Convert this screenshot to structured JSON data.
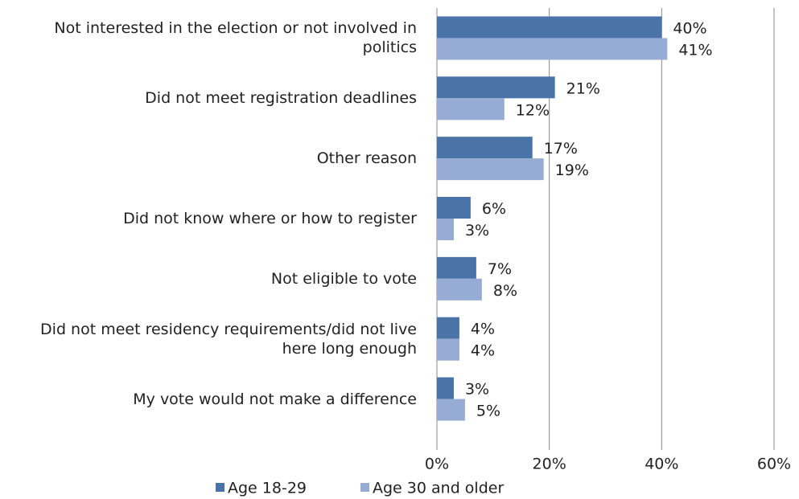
{
  "chart_data": {
    "type": "bar",
    "orientation": "horizontal",
    "categories": [
      "Not interested in the election or not involved in politics",
      "Did not meet registration deadlines",
      "Other reason",
      "Did not know where or how to register",
      "Not eligible to vote",
      "Did not meet residency requirements/did not live here long enough",
      "My vote would not make a difference"
    ],
    "series": [
      {
        "name": "Age 18-29",
        "color": "#4a74a8",
        "values": [
          40,
          21,
          17,
          6,
          7,
          4,
          3
        ],
        "value_labels": [
          "40%",
          "21%",
          "17%",
          "6%",
          "7%",
          "4%",
          "3%"
        ]
      },
      {
        "name": "Age 30 and older",
        "color": "#97acd4",
        "values": [
          41,
          12,
          19,
          3,
          8,
          4,
          5
        ],
        "value_labels": [
          "41%",
          "12%",
          "19%",
          "3%",
          "8%",
          "4%",
          "5%"
        ]
      }
    ],
    "xlim": [
      0,
      60
    ],
    "xticks": [
      {
        "value": 0,
        "label": "0%"
      },
      {
        "value": 20,
        "label": "20%"
      },
      {
        "value": 40,
        "label": "40%"
      },
      {
        "value": 60,
        "label": "60%"
      }
    ],
    "grid": true,
    "legend": "bottom"
  }
}
